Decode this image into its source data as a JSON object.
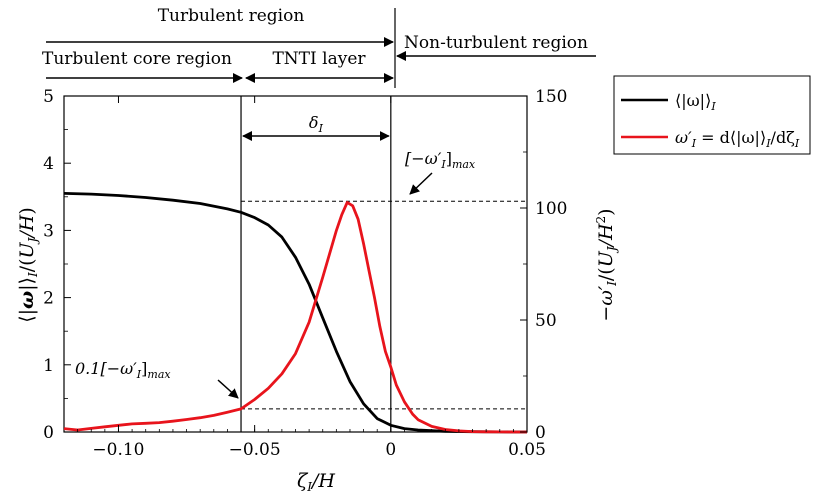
{
  "regions": {
    "turbulent": "Turbulent region",
    "core": "Turbulent core region",
    "tnti": "TNTI layer",
    "nonturb": "Non-turbulent region"
  },
  "legend": {
    "entries": [
      {
        "label": "⟨|ω|⟩",
        "sub": "I",
        "color": "#000000"
      },
      {
        "label": "ω′",
        "sub": "I",
        "rest": " = d⟨|ω|⟩",
        "sub2": "I",
        "rest2": "/dζ",
        "sub3": "I",
        "color": "#e8141c"
      }
    ]
  },
  "annotations": {
    "delta": "δ",
    "delta_sub": "I",
    "max_label": "[−ω′",
    "max_sub": "I",
    "max_end": "]",
    "max_subscript": "max",
    "tenth_label": "0.1[−ω′",
    "tenth_sub": "I",
    "tenth_end": "]",
    "tenth_subscript": "max"
  },
  "chart_data": {
    "type": "line",
    "xlabel": "ζI/H",
    "ylabel": "⟨|ω|⟩I/(UJ/H)",
    "y2label": "−ω′I/(UJ/H²)",
    "xlim": [
      -0.12,
      0.05
    ],
    "ylim": [
      0,
      5
    ],
    "y2lim": [
      0,
      150
    ],
    "xticks": [
      -0.1,
      -0.05,
      0,
      0.05
    ],
    "xtick_labels": [
      "−0.10",
      "−0.05",
      "0",
      "0.05"
    ],
    "yticks": [
      0,
      1,
      2,
      3,
      4,
      5
    ],
    "ytick_labels": [
      "0",
      "1",
      "2",
      "3",
      "4",
      "5"
    ],
    "y2ticks": [
      0,
      50,
      100,
      150
    ],
    "y2tick_labels": [
      "0",
      "50",
      "100",
      "150"
    ],
    "vlines": [
      -0.055,
      0
    ],
    "hlines_y2": [
      103,
      10.3
    ],
    "series": [
      {
        "name": "⟨|ω|⟩I",
        "axis": "left",
        "color": "#000000",
        "x": [
          -0.12,
          -0.11,
          -0.1,
          -0.09,
          -0.08,
          -0.07,
          -0.06,
          -0.055,
          -0.05,
          -0.045,
          -0.04,
          -0.035,
          -0.03,
          -0.025,
          -0.02,
          -0.015,
          -0.01,
          -0.005,
          0,
          0.005,
          0.01,
          0.015,
          0.02,
          0.03,
          0.04,
          0.05
        ],
        "y": [
          3.55,
          3.54,
          3.52,
          3.49,
          3.45,
          3.4,
          3.32,
          3.27,
          3.19,
          3.08,
          2.9,
          2.6,
          2.2,
          1.7,
          1.2,
          0.75,
          0.42,
          0.2,
          0.1,
          0.05,
          0.03,
          0.02,
          0.01,
          0.005,
          0.002,
          0.0
        ]
      },
      {
        "name": "ω′I = d⟨|ω|⟩I/dζI",
        "axis": "right",
        "color": "#e8141c",
        "x": [
          -0.12,
          -0.115,
          -0.11,
          -0.105,
          -0.1,
          -0.095,
          -0.09,
          -0.085,
          -0.08,
          -0.075,
          -0.07,
          -0.065,
          -0.06,
          -0.055,
          -0.05,
          -0.045,
          -0.04,
          -0.035,
          -0.03,
          -0.025,
          -0.02,
          -0.018,
          -0.016,
          -0.014,
          -0.012,
          -0.01,
          -0.008,
          -0.006,
          -0.004,
          -0.002,
          0,
          0.002,
          0.005,
          0.008,
          0.01,
          0.015,
          0.02,
          0.025,
          0.03,
          0.035,
          0.04,
          0.045,
          0.05
        ],
        "y": [
          1.5,
          0.9,
          1.6,
          2.3,
          3.0,
          3.6,
          3.9,
          4.2,
          4.8,
          5.6,
          6.4,
          7.4,
          8.8,
          10.3,
          14.5,
          19.5,
          26,
          35,
          49,
          69,
          90,
          97,
          102.5,
          101,
          95,
          84,
          72,
          60,
          47,
          36,
          29,
          21,
          13.5,
          8,
          5.5,
          2.5,
          1.1,
          0.5,
          0.2,
          0.1,
          0.05,
          0.02,
          0.01
        ]
      }
    ]
  }
}
